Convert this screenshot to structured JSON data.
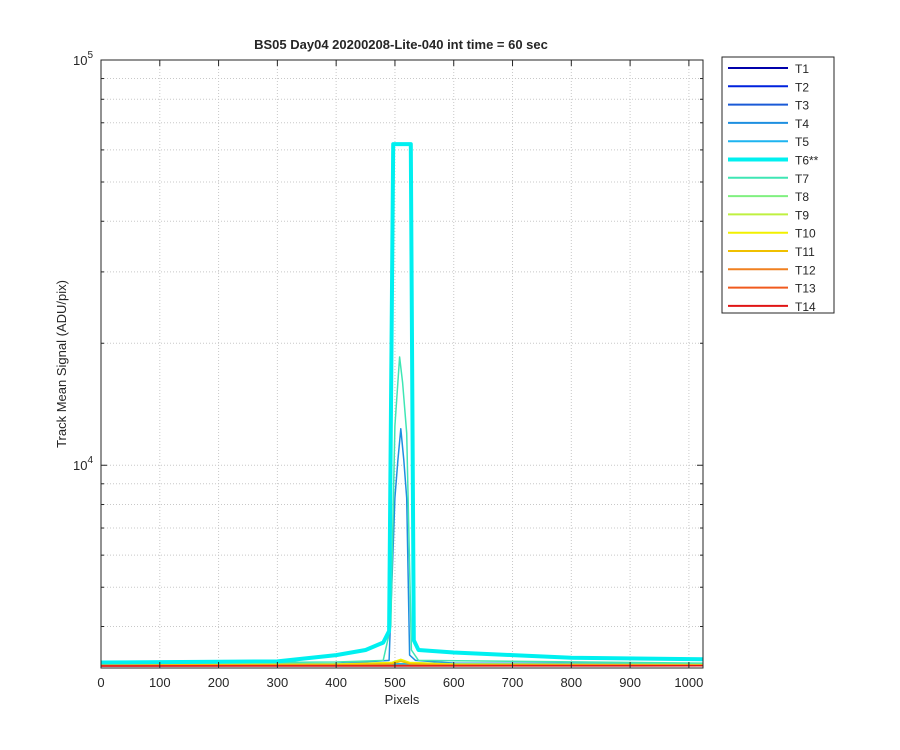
{
  "chart_data": {
    "type": "line",
    "title": "BS05 Day04 20200208-Lite-040 int time = 60 sec",
    "xlabel": "Pixels",
    "ylabel": "Track Mean Signal (ADU/pix)",
    "xlim": [
      0,
      1024
    ],
    "ylim": [
      3160,
      100000
    ],
    "yscale": "log",
    "grid": true,
    "legend_position": "outside-right",
    "xticks": [
      0,
      100,
      200,
      300,
      400,
      500,
      600,
      700,
      800,
      900,
      1000
    ],
    "yticks": [
      {
        "value": 10000,
        "base": "10",
        "exp": "4"
      },
      {
        "value": 100000,
        "base": "10",
        "exp": "5"
      }
    ],
    "series": [
      {
        "name": "T1",
        "color": "#0000aa",
        "highlight": false,
        "x": [
          0,
          1024
        ],
        "y": [
          3210,
          3215
        ]
      },
      {
        "name": "T2",
        "color": "#0022dd",
        "highlight": false,
        "x": [
          0,
          1024
        ],
        "y": [
          3215,
          3220
        ]
      },
      {
        "name": "T3",
        "color": "#1a5ad6",
        "highlight": false,
        "x": [
          0,
          1024
        ],
        "y": [
          3220,
          3225
        ]
      },
      {
        "name": "T4",
        "color": "#1e8fe0",
        "highlight": false,
        "x": [
          0,
          400,
          490,
          500,
          505,
          510,
          515,
          520,
          525,
          535,
          600,
          1024
        ],
        "y": [
          3230,
          3240,
          3300,
          8300,
          10300,
          12300,
          10300,
          8300,
          3400,
          3300,
          3250,
          3240
        ]
      },
      {
        "name": "T5",
        "color": "#1eb4f0",
        "highlight": false,
        "x": [
          0,
          1024
        ],
        "y": [
          3235,
          3240
        ]
      },
      {
        "name": "T6**",
        "color": "#00f0f0",
        "highlight": true,
        "x": [
          0,
          300,
          400,
          450,
          480,
          490,
          497,
          503,
          520,
          527,
          532,
          540,
          600,
          700,
          800,
          1024
        ],
        "y": [
          3260,
          3280,
          3400,
          3500,
          3650,
          3900,
          62000,
          62000,
          62000,
          62000,
          3700,
          3500,
          3450,
          3400,
          3350,
          3320
        ]
      },
      {
        "name": "T7",
        "color": "#3fe6b4",
        "highlight": false,
        "x": [
          0,
          400,
          480,
          493,
          500,
          508,
          513,
          520,
          528,
          540,
          1024
        ],
        "y": [
          3240,
          3270,
          3300,
          4000,
          12500,
          18500,
          16000,
          12000,
          3500,
          3300,
          3250
        ]
      },
      {
        "name": "T8",
        "color": "#80f080",
        "highlight": false,
        "x": [
          0,
          400,
          495,
          510,
          525,
          600,
          1024
        ],
        "y": [
          3225,
          3235,
          3260,
          3300,
          3260,
          3235,
          3225
        ]
      },
      {
        "name": "T9",
        "color": "#bff040",
        "highlight": false,
        "x": [
          0,
          400,
          495,
          510,
          525,
          600,
          1024
        ],
        "y": [
          3220,
          3230,
          3250,
          3290,
          3250,
          3230,
          3220
        ]
      },
      {
        "name": "T10",
        "color": "#f2f000",
        "highlight": false,
        "x": [
          0,
          400,
          495,
          510,
          525,
          600,
          1024
        ],
        "y": [
          3215,
          3225,
          3260,
          3320,
          3260,
          3225,
          3215
        ]
      },
      {
        "name": "T11",
        "color": "#f0c000",
        "highlight": false,
        "x": [
          0,
          400,
          495,
          510,
          525,
          600,
          1024
        ],
        "y": [
          3210,
          3220,
          3240,
          3280,
          3240,
          3220,
          3210
        ]
      },
      {
        "name": "T12",
        "color": "#f08020",
        "highlight": false,
        "x": [
          0,
          1024
        ],
        "y": [
          3205,
          3210
        ]
      },
      {
        "name": "T13",
        "color": "#f05a1e",
        "highlight": false,
        "x": [
          0,
          1024
        ],
        "y": [
          3200,
          3205
        ]
      },
      {
        "name": "T14",
        "color": "#e01414",
        "highlight": false,
        "x": [
          0,
          1024
        ],
        "y": [
          3195,
          3200
        ]
      }
    ]
  }
}
